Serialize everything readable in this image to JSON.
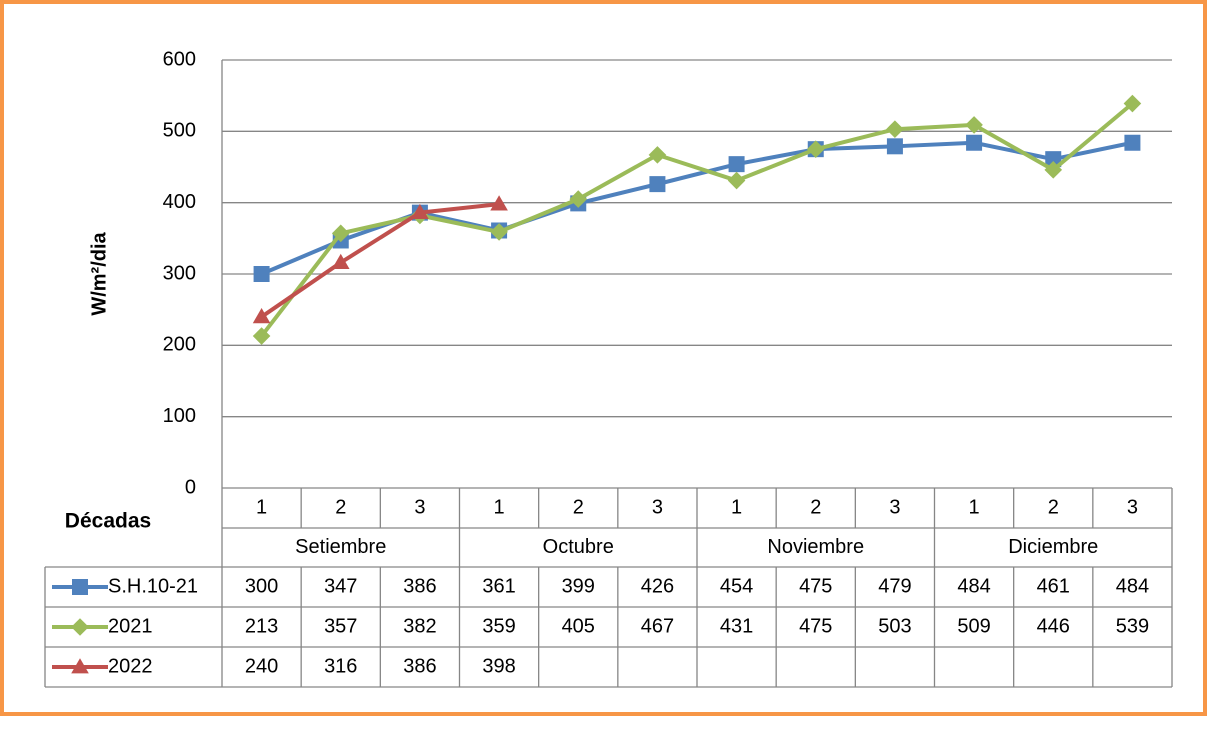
{
  "chart_data": {
    "type": "line",
    "y_label": "W/m²/dia",
    "x_label": "Décadas",
    "categories": [
      "1",
      "2",
      "3",
      "1",
      "2",
      "3",
      "1",
      "2",
      "3",
      "1",
      "2",
      "3"
    ],
    "groups": [
      "Setiembre",
      "Octubre",
      "Noviembre",
      "Diciembre"
    ],
    "ylim": [
      0,
      600
    ],
    "yticks": [
      0,
      100,
      200,
      300,
      400,
      500,
      600
    ],
    "grid": true,
    "series": [
      {
        "name": "S.H.10-21",
        "color": "#4f81bd",
        "marker": "square",
        "values": [
          300,
          347,
          386,
          361,
          399,
          426,
          454,
          475,
          479,
          484,
          461,
          484
        ]
      },
      {
        "name": "2021",
        "color": "#9bbb59",
        "marker": "diamond",
        "values": [
          213,
          357,
          382,
          359,
          405,
          467,
          431,
          475,
          503,
          509,
          446,
          539
        ]
      },
      {
        "name": "2022",
        "color": "#c0504d",
        "marker": "triangle",
        "values": [
          240,
          316,
          386,
          398,
          null,
          null,
          null,
          null,
          null,
          null,
          null,
          null
        ]
      }
    ]
  }
}
